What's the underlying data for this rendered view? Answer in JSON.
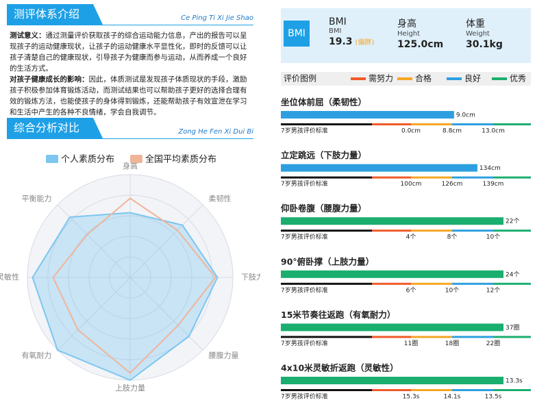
{
  "intro": {
    "title": "测评体系介绍",
    "pinyin": "Ce Ping Ti Xi Jie Shao",
    "paragraphs": [
      {
        "lead": "测试意义：",
        "text": "通过测量评价获取孩子的综合运动能力信息，产出的报告可以呈现孩子的运动健康现状，让孩子的运动健康水平显性化，即时的反馈可以让孩子清楚自己的健康现状，引导孩子为健康而参与运动，从而养成一个良好的生活方式。"
      },
      {
        "lead": "对孩子健康成长的影响：",
        "text": "因此，体质测试是发现孩子体质现状的手段，激励孩子积极参加体育锻炼活动，而测试结果也可以帮助孩子更好的选择合理有效的锻炼方法，也能使孩子的身体得到锻炼，还能帮助孩子有效宣泄在学习和生活中产生的各种不良情绪，学会自我调节。"
      }
    ]
  },
  "analysis": {
    "title": "综合分析对比",
    "pinyin": "Zong He Fen Xi Dui Bi"
  },
  "chart_data": {
    "type": "radar",
    "categories": [
      "身高",
      "柔韧性",
      "下肢力量",
      "腰腹力量",
      "上肢力量",
      "有氧耐力",
      "灵敏性",
      "平衡能力"
    ],
    "series": [
      {
        "name": "个人素质分布",
        "color": "#7cc6f0",
        "values": [
          63,
          72,
          85,
          81,
          100,
          100,
          95,
          83
        ]
      },
      {
        "name": "全国平均素质分布",
        "color": "#f0b49a",
        "values": [
          77,
          65,
          83,
          66,
          93,
          72,
          75,
          59
        ]
      }
    ],
    "rlim": [
      0,
      100
    ],
    "rticks": [
      20,
      40,
      60,
      80,
      100
    ],
    "legend": "top"
  },
  "bmi": {
    "badge": "BMI",
    "items": [
      {
        "label": "BMI",
        "sublabel": "BMI",
        "value": "19.3",
        "note": "(偏胖)"
      },
      {
        "label": "身高",
        "sublabel": "Height",
        "value": "125.0cm"
      },
      {
        "label": "体重",
        "sublabel": "Weight",
        "value": "30.1kg"
      }
    ]
  },
  "legend": {
    "title": "评价图例",
    "levels": [
      {
        "name": "需努力",
        "color": "#f05a28"
      },
      {
        "name": "合格",
        "color": "#f5a623"
      },
      {
        "name": "良好",
        "color": "#2d9fe0"
      },
      {
        "name": "优秀",
        "color": "#1aae6f"
      }
    ]
  },
  "tests": [
    {
      "name": "坐位体前屈（柔韧性）",
      "value": 9.0,
      "value_label": "9.0cm",
      "color": "#2d9fe0",
      "standard": "7岁男孩评价标准",
      "thresholds": [
        {
          "value": 0.0,
          "label": "0.0cm"
        },
        {
          "value": 8.8,
          "label": "8.8cm"
        },
        {
          "value": 13.0,
          "label": "13.0cm"
        }
      ]
    },
    {
      "name": "立定跳远（下肢力量）",
      "value": 134,
      "value_label": "134cm",
      "color": "#2d9fe0",
      "standard": "7岁男孩评价标准",
      "thresholds": [
        {
          "value": 100,
          "label": "100cm"
        },
        {
          "value": 126,
          "label": "126cm"
        },
        {
          "value": 139,
          "label": "139cm"
        }
      ]
    },
    {
      "name": "仰卧卷腹（腰腹力量）",
      "value": 22,
      "value_label": "22个",
      "color": "#1aae6f",
      "standard": "7岁男孩评价标准",
      "thresholds": [
        {
          "value": 4,
          "label": "4个"
        },
        {
          "value": 8,
          "label": "8个"
        },
        {
          "value": 10,
          "label": "10个"
        }
      ]
    },
    {
      "name": "90°俯卧撑（上肢力量）",
      "value": 24,
      "value_label": "24个",
      "color": "#1aae6f",
      "standard": "7岁男孩评价标准",
      "thresholds": [
        {
          "value": 6,
          "label": "6个"
        },
        {
          "value": 10,
          "label": "10个"
        },
        {
          "value": 12,
          "label": "12个"
        }
      ]
    },
    {
      "name": "15米节奏往返跑（有氧耐力）",
      "value": 37,
      "value_label": "37圈",
      "color": "#1aae6f",
      "standard": "7岁男孩评价标准",
      "thresholds": [
        {
          "value": 11,
          "label": "11圈"
        },
        {
          "value": 18,
          "label": "18圈"
        },
        {
          "value": 22,
          "label": "22圈"
        }
      ]
    },
    {
      "name": "4x10米灵敏折返跑（灵敏性）",
      "value": 13.3,
      "value_label": "13.3s",
      "color": "#1aae6f",
      "standard": "7岁男孩评价标准",
      "thresholds": [
        {
          "value": 15.3,
          "label": "15.3s"
        },
        {
          "value": 14.1,
          "label": "14.1s"
        },
        {
          "value": 13.5,
          "label": "13.5s"
        }
      ]
    }
  ]
}
